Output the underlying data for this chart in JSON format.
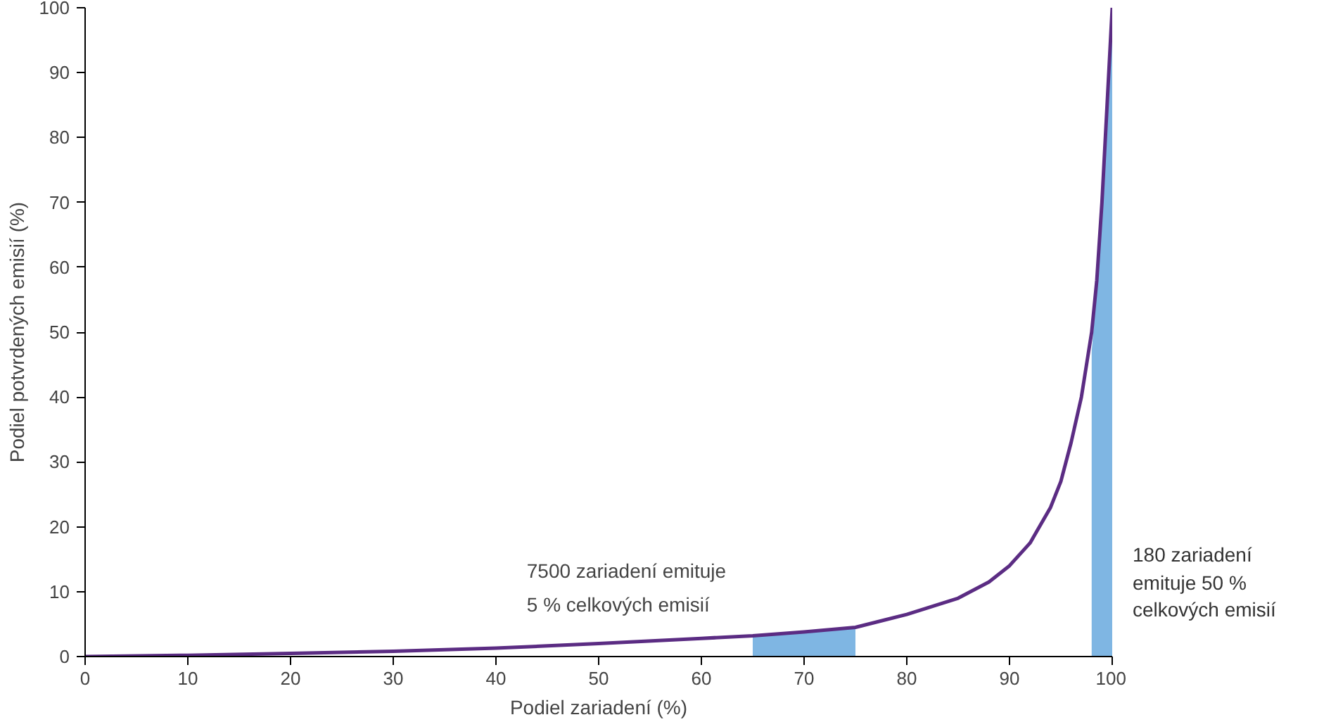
{
  "chart_data": {
    "type": "line",
    "xlabel": "Podiel zariadení (%)",
    "ylabel": "Podiel potvrdených emisií (%)",
    "xlim": [
      0,
      100
    ],
    "ylim": [
      0,
      100
    ],
    "xticks": [
      0,
      10,
      20,
      30,
      40,
      50,
      60,
      70,
      80,
      90,
      100
    ],
    "yticks": [
      0,
      10,
      20,
      30,
      40,
      50,
      60,
      70,
      80,
      90,
      100
    ],
    "grid": false,
    "series": [
      {
        "type": "area",
        "color": "#7fb6e3",
        "x": [
          65,
          67.5,
          70,
          72.5,
          75
        ],
        "values": [
          3.2,
          3.5,
          3.8,
          4.1,
          4.5
        ]
      },
      {
        "type": "area",
        "color": "#7fb6e3",
        "x": [
          98,
          98.5,
          99,
          99.5,
          100
        ],
        "values": [
          47,
          57,
          70,
          85,
          100
        ]
      },
      {
        "color": "#5b2c83",
        "x": [
          0,
          10,
          20,
          30,
          40,
          50,
          60,
          65,
          70,
          75,
          80,
          85,
          88,
          90,
          92,
          94,
          95,
          96,
          97,
          98,
          98.5,
          99,
          99.5,
          100
        ],
        "values": [
          0,
          0.2,
          0.5,
          0.8,
          1.3,
          2,
          2.8,
          3.2,
          3.8,
          4.5,
          6.5,
          9,
          11.5,
          14,
          17.5,
          23,
          27,
          33,
          40,
          50,
          58,
          70,
          85,
          100
        ]
      }
    ],
    "annotations": [
      "7500 zariadení emituje\n5 % celkových emisií",
      "180 zariadení\nemituje 50 %\ncelkových emisií"
    ]
  }
}
